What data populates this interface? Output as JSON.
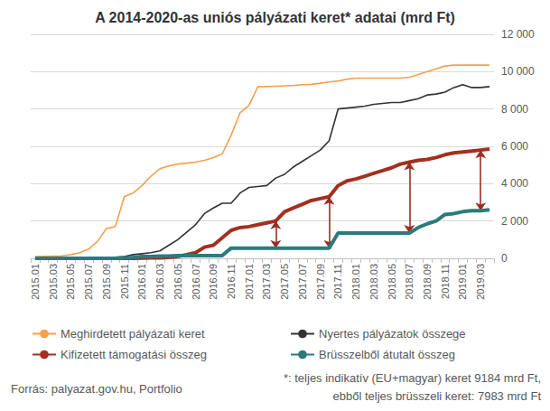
{
  "chart_data": {
    "type": "line",
    "title": "A 2014-2020-as uniós pályázati keret* adatai (mrd Ft)",
    "source": "Forrás: palyazat.gov.hu, Portfolio",
    "footnote": [
      "*: teljes indikatív (EU+magyar) keret 9184 mrd Ft,",
      "ebből teljes brüsszeli keret: 7983 mrd Ft"
    ],
    "categories": [
      "2015.01",
      null,
      "2015.03",
      null,
      "2015.05",
      null,
      "2015.07",
      null,
      "2015.09",
      null,
      "2015.11",
      null,
      "2016.01",
      null,
      "2016.03",
      null,
      "2016.05",
      null,
      "2016.07",
      null,
      "2016.09",
      null,
      "2016.11",
      null,
      "2017.01",
      null,
      "2017.03",
      null,
      "2017.05",
      null,
      "2017.07",
      null,
      "2017.09",
      null,
      "2017.11",
      null,
      "2018.01",
      null,
      "2018.03",
      null,
      "2018.05",
      null,
      "2018.07",
      null,
      "2018.09",
      null,
      "2018.11",
      null,
      "2019.01",
      null,
      "2019.03",
      null
    ],
    "series": [
      {
        "name": "Meghirdetett pályázati keret",
        "color": "#f5a04e",
        "values": [
          100,
          110,
          120,
          130,
          200,
          300,
          500,
          900,
          1600,
          1700,
          3300,
          3500,
          3900,
          4400,
          4800,
          4950,
          5050,
          5100,
          5150,
          5250,
          5400,
          5600,
          6600,
          7800,
          8200,
          9200,
          9200,
          9220,
          9240,
          9260,
          9300,
          9320,
          9380,
          9450,
          9500,
          9600,
          9650,
          9650,
          9650,
          9650,
          9650,
          9650,
          9700,
          9850,
          10000,
          10150,
          10300,
          10350,
          10350,
          10350,
          10350,
          10350
        ]
      },
      {
        "name": "Nyertes pályázatok összege",
        "color": "#333333",
        "values": [
          0,
          0,
          0,
          0,
          0,
          0,
          0,
          0,
          30,
          60,
          100,
          200,
          250,
          300,
          400,
          700,
          1000,
          1400,
          1800,
          2400,
          2700,
          2950,
          2950,
          3500,
          3800,
          3850,
          3900,
          4300,
          4500,
          4900,
          5200,
          5500,
          5800,
          6300,
          8000,
          8050,
          8100,
          8150,
          8250,
          8300,
          8350,
          8350,
          8450,
          8550,
          8750,
          8800,
          8900,
          9150,
          9300,
          9150,
          9150,
          9200
        ]
      },
      {
        "name": "Kifizetett támogatási összeg",
        "color": "#a3301f",
        "values": [
          0,
          0,
          0,
          0,
          0,
          0,
          0,
          0,
          0,
          0,
          0,
          0,
          10,
          20,
          30,
          50,
          100,
          200,
          300,
          600,
          700,
          1100,
          1500,
          1650,
          1700,
          1800,
          1900,
          2000,
          2500,
          2700,
          2900,
          3100,
          3200,
          3300,
          3900,
          4150,
          4250,
          4400,
          4550,
          4700,
          4850,
          5050,
          5150,
          5250,
          5300,
          5400,
          5550,
          5650,
          5700,
          5750,
          5800,
          5850
        ]
      },
      {
        "name": "Brüsszelből átutalt összeg",
        "color": "#2b7a7d",
        "values": [
          0,
          0,
          0,
          0,
          0,
          0,
          0,
          0,
          0,
          0,
          30,
          50,
          100,
          100,
          120,
          120,
          150,
          150,
          150,
          150,
          150,
          150,
          550,
          550,
          550,
          550,
          550,
          550,
          550,
          550,
          550,
          550,
          550,
          550,
          1350,
          1350,
          1350,
          1350,
          1350,
          1350,
          1350,
          1350,
          1350,
          1650,
          1850,
          2000,
          2350,
          2400,
          2500,
          2550,
          2550,
          2600
        ]
      }
    ],
    "annotations": [
      {
        "type": "arrow",
        "index": 27,
        "between": [
          "Kifizetett támogatási összeg",
          "Brüsszelből átutalt összeg"
        ]
      },
      {
        "type": "arrow",
        "index": 33,
        "between": [
          "Kifizetett támogatási összeg",
          "Brüsszelből átutalt összeg"
        ]
      },
      {
        "type": "arrow",
        "index": 42,
        "between": [
          "Kifizetett támogatási összeg",
          "Brüsszelből átutalt összeg"
        ]
      },
      {
        "type": "arrow",
        "index": 50,
        "between": [
          "Kifizetett támogatási összeg",
          "Brüsszelből átutalt összeg"
        ]
      }
    ],
    "ylim": [
      0,
      12000
    ],
    "yticks": [
      0,
      {
        "value": 2000,
        "label": "2 000"
      },
      {
        "value": 4000,
        "label": "4 000"
      },
      {
        "value": 6000,
        "label": "6 000"
      },
      {
        "value": 8000,
        "label": "8 000"
      },
      {
        "value": 10000,
        "label": "10 000"
      },
      {
        "value": 12000,
        "label": "12 000"
      }
    ],
    "grid": true,
    "legend": "bottom"
  }
}
